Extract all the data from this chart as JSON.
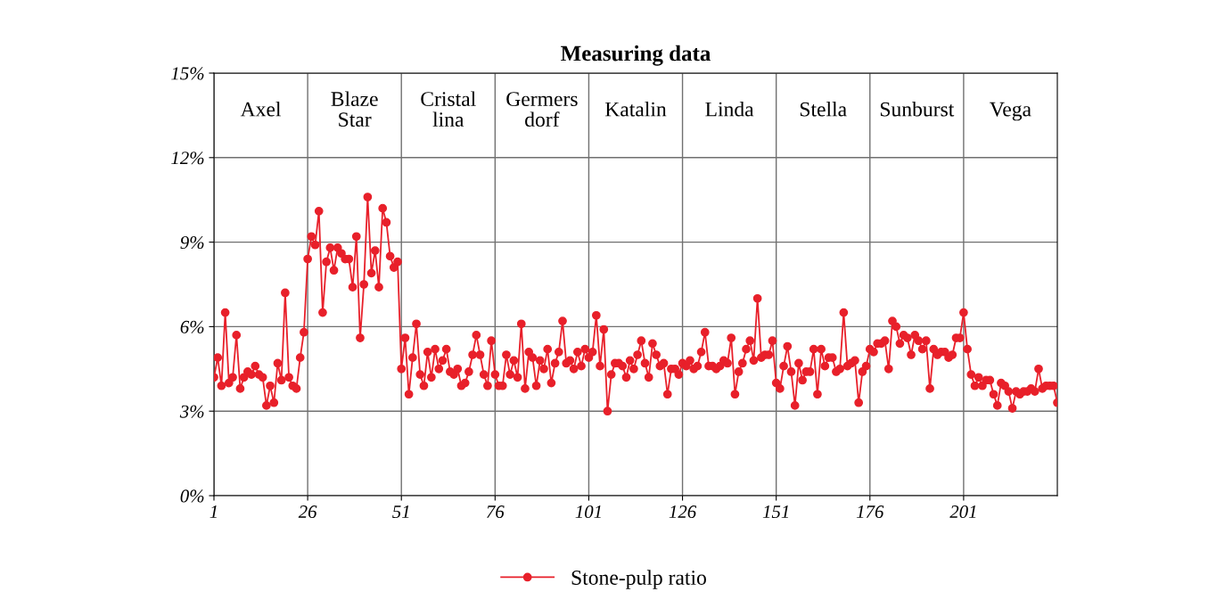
{
  "chart_data": {
    "type": "line",
    "title": "Measuring data",
    "x": [
      1,
      2,
      3,
      4,
      5,
      6,
      7,
      8,
      9,
      10,
      11,
      12,
      13,
      14,
      15,
      16,
      17,
      18,
      19,
      20,
      21,
      22,
      23,
      24,
      25,
      26,
      27,
      28,
      29,
      30,
      31,
      32,
      33,
      34,
      35,
      36,
      37,
      38,
      39,
      40,
      41,
      42,
      43,
      44,
      45,
      46,
      47,
      48,
      49,
      50,
      51,
      52,
      53,
      54,
      55,
      56,
      57,
      58,
      59,
      60,
      61,
      62,
      63,
      64,
      65,
      66,
      67,
      68,
      69,
      70,
      71,
      72,
      73,
      74,
      75,
      76,
      77,
      78,
      79,
      80,
      81,
      82,
      83,
      84,
      85,
      86,
      87,
      88,
      89,
      90,
      91,
      92,
      93,
      94,
      95,
      96,
      97,
      98,
      99,
      100,
      101,
      102,
      103,
      104,
      105,
      106,
      107,
      108,
      109,
      110,
      111,
      112,
      113,
      114,
      115,
      116,
      117,
      118,
      119,
      120,
      121,
      122,
      123,
      124,
      125,
      126,
      127,
      128,
      129,
      130,
      131,
      132,
      133,
      134,
      135,
      136,
      137,
      138,
      139,
      140,
      141,
      142,
      143,
      144,
      145,
      146,
      147,
      148,
      149,
      150,
      151,
      152,
      153,
      154,
      155,
      156,
      157,
      158,
      159,
      160,
      161,
      162,
      163,
      164,
      165,
      166,
      167,
      168,
      169,
      170,
      171,
      172,
      173,
      174,
      175,
      176,
      177,
      178,
      179,
      180,
      181,
      182,
      183,
      184,
      185,
      186,
      187,
      188,
      189,
      190,
      191,
      192,
      193,
      194,
      195,
      196,
      197,
      198,
      199,
      200,
      201,
      202,
      203,
      204,
      205,
      206,
      207,
      208,
      209,
      210,
      211,
      212,
      213,
      214,
      215,
      216,
      217,
      218,
      219,
      220,
      221,
      222,
      223,
      224,
      225,
      226
    ],
    "series": [
      {
        "name": "Stone-pulp ratio",
        "color": "#e8202a",
        "values": [
          4.2,
          4.9,
          3.9,
          6.5,
          4.0,
          4.2,
          5.7,
          3.8,
          4.2,
          4.4,
          4.3,
          4.6,
          4.3,
          4.2,
          3.2,
          3.9,
          3.3,
          4.7,
          4.1,
          7.2,
          4.2,
          3.9,
          3.8,
          4.9,
          5.8,
          8.4,
          9.2,
          8.9,
          10.1,
          6.5,
          8.3,
          8.8,
          8.0,
          8.8,
          8.6,
          8.4,
          8.4,
          7.4,
          9.2,
          5.6,
          7.5,
          10.6,
          7.9,
          8.7,
          7.4,
          10.2,
          9.7,
          8.5,
          8.1,
          8.3,
          4.5,
          5.6,
          3.6,
          4.9,
          6.1,
          4.3,
          3.9,
          5.1,
          4.2,
          5.2,
          4.5,
          4.8,
          5.2,
          4.4,
          4.3,
          4.5,
          3.9,
          4.0,
          4.4,
          5.0,
          5.7,
          5.0,
          4.3,
          3.9,
          5.5,
          4.3,
          3.9,
          3.9,
          5.0,
          4.3,
          4.8,
          4.2,
          6.1,
          3.8,
          5.1,
          4.9,
          3.9,
          4.8,
          4.5,
          5.2,
          4.0,
          4.7,
          5.1,
          6.2,
          4.7,
          4.8,
          4.5,
          5.1,
          4.6,
          5.2,
          4.9,
          5.1,
          6.4,
          4.6,
          5.9,
          3.0,
          4.3,
          4.7,
          4.7,
          4.6,
          4.2,
          4.8,
          4.5,
          5.0,
          5.5,
          4.7,
          4.2,
          5.4,
          5.0,
          4.6,
          4.7,
          3.6,
          4.5,
          4.5,
          4.3,
          4.7,
          4.6,
          4.8,
          4.5,
          4.6,
          5.1,
          5.8,
          4.6,
          4.6,
          4.5,
          4.6,
          4.8,
          4.7,
          5.6,
          3.6,
          4.4,
          4.7,
          5.2,
          5.5,
          4.8,
          7.0,
          4.9,
          5.0,
          5.0,
          5.5,
          4.0,
          3.8,
          4.6,
          5.3,
          4.4,
          3.2,
          4.7,
          4.1,
          4.4,
          4.4,
          5.2,
          3.6,
          5.2,
          4.6,
          4.9,
          4.9,
          4.4,
          4.5,
          6.5,
          4.6,
          4.7,
          4.8,
          3.3,
          4.4,
          4.6,
          5.2,
          5.1,
          5.4,
          5.4,
          5.5,
          4.5,
          6.2,
          6.0,
          5.4,
          5.7,
          5.6,
          5.0,
          5.7,
          5.5,
          5.2,
          5.5,
          3.8,
          5.2,
          5.0,
          5.1,
          5.1,
          4.9,
          5.0,
          5.6,
          5.6,
          6.5,
          5.2,
          4.3,
          3.9,
          4.2,
          3.9,
          4.1,
          4.1,
          3.6,
          3.2,
          4.0,
          3.9,
          3.7,
          3.1,
          3.7,
          3.6,
          3.7,
          3.7,
          3.8,
          3.7,
          4.5,
          3.8,
          3.9,
          3.9,
          3.9,
          3.3
        ]
      }
    ],
    "xlim": [
      1,
      226
    ],
    "xticks": [
      1,
      26,
      51,
      76,
      101,
      126,
      151,
      176,
      201
    ],
    "ylim": [
      0,
      15
    ],
    "yticks": [
      {
        "value": 0,
        "label": "0%"
      },
      {
        "value": 3,
        "label": "3%"
      },
      {
        "value": 6,
        "label": "6%"
      },
      {
        "value": 9,
        "label": "9%"
      },
      {
        "value": 12,
        "label": "12%"
      },
      {
        "value": 15,
        "label": "15%"
      }
    ],
    "annotations": [
      "Axel",
      "Blaze\nStar",
      "Cristal\nlina",
      "Germers\ndorf",
      "Katalin",
      "Linda",
      "Stella",
      "Sunburst",
      "Vega"
    ],
    "grid": true,
    "legend": "bottom",
    "marker": "circle",
    "line_style": "solid"
  }
}
